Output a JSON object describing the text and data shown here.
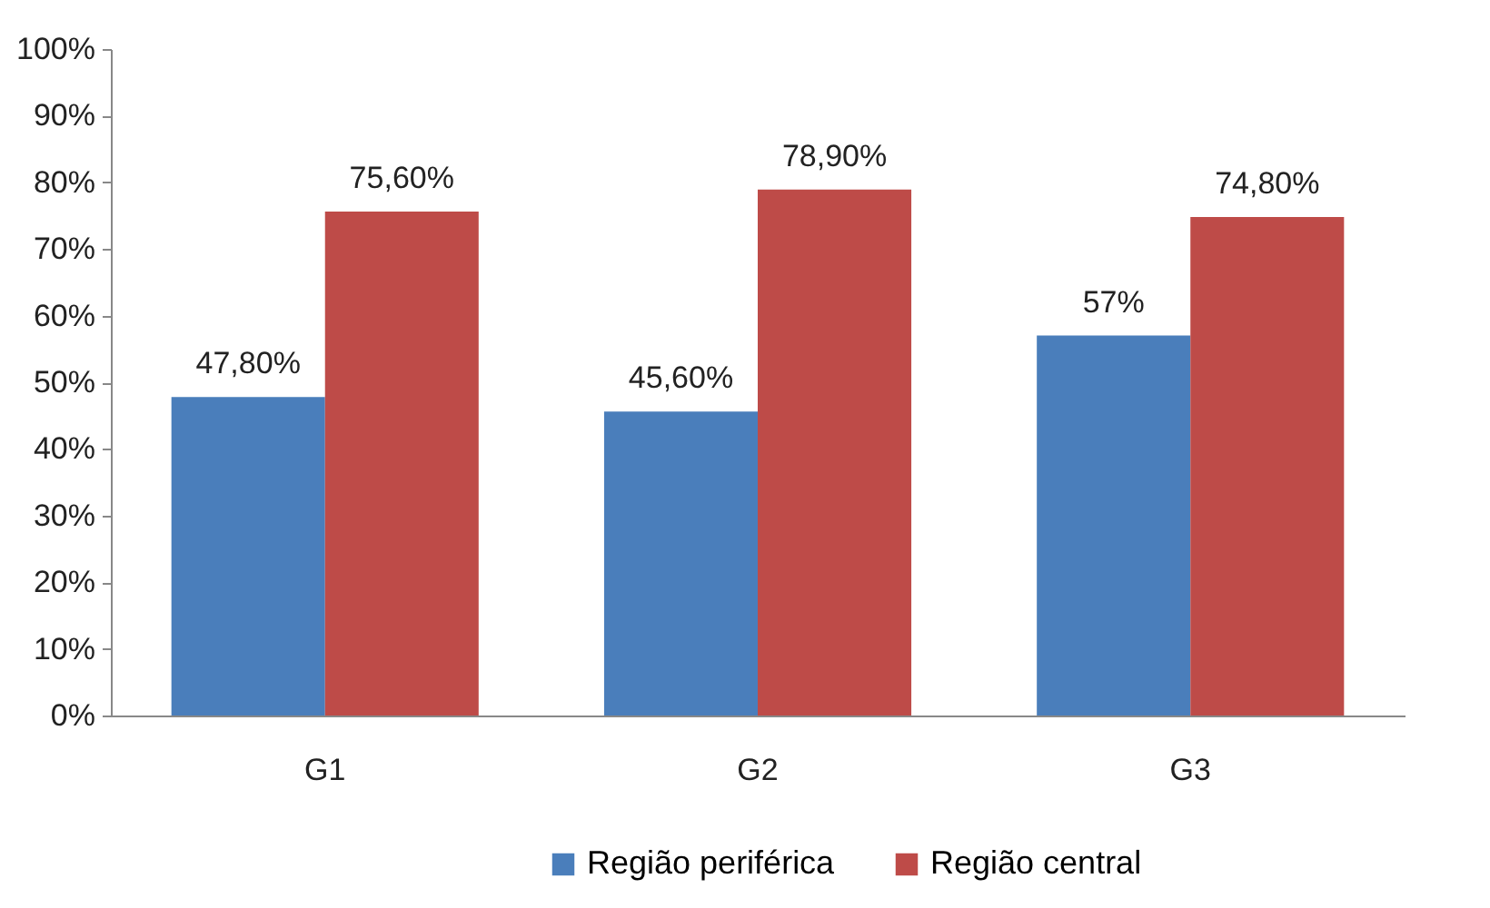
{
  "chart_data": {
    "type": "bar",
    "categories": [
      "G1",
      "G2",
      "G3"
    ],
    "series": [
      {
        "name": "Região periférica",
        "color": "#4a7ebb",
        "values": [
          47.8,
          45.6,
          57
        ],
        "value_labels": [
          "47,80%",
          "45,60%",
          "57%"
        ]
      },
      {
        "name": "Região central",
        "color": "#be4b48",
        "values": [
          75.6,
          78.9,
          74.8
        ],
        "value_labels": [
          "75,60%",
          "78,90%",
          "74,80%"
        ]
      }
    ],
    "ylim": [
      0,
      100
    ],
    "yticks": [
      {
        "value": 0,
        "label": "0%"
      },
      {
        "value": 10,
        "label": "10%"
      },
      {
        "value": 20,
        "label": "20%"
      },
      {
        "value": 30,
        "label": "30%"
      },
      {
        "value": 40,
        "label": "40%"
      },
      {
        "value": 50,
        "label": "50%"
      },
      {
        "value": 60,
        "label": "60%"
      },
      {
        "value": 70,
        "label": "70%"
      },
      {
        "value": 80,
        "label": "80%"
      },
      {
        "value": 90,
        "label": "90%"
      },
      {
        "value": 100,
        "label": "100%"
      }
    ],
    "grid": false,
    "legend": "bottom"
  }
}
